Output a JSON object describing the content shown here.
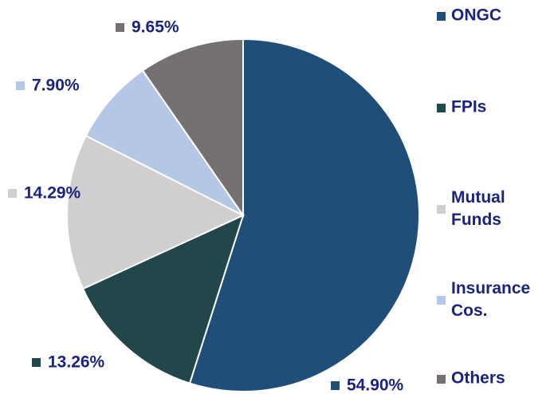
{
  "chart_data": {
    "type": "pie",
    "categories": [
      "ONGC",
      "FPIs",
      "Mutual Funds",
      "Insurance Cos.",
      "Others"
    ],
    "values": [
      54.9,
      13.26,
      14.29,
      7.9,
      9.65
    ],
    "value_labels": [
      "54.90%",
      "13.26%",
      "14.29%",
      "7.90%",
      "9.65%"
    ],
    "colors": [
      "#1f4e79",
      "#21474a",
      "#d0cece",
      "#b4c7e7",
      "#767171"
    ],
    "legend": "right"
  }
}
